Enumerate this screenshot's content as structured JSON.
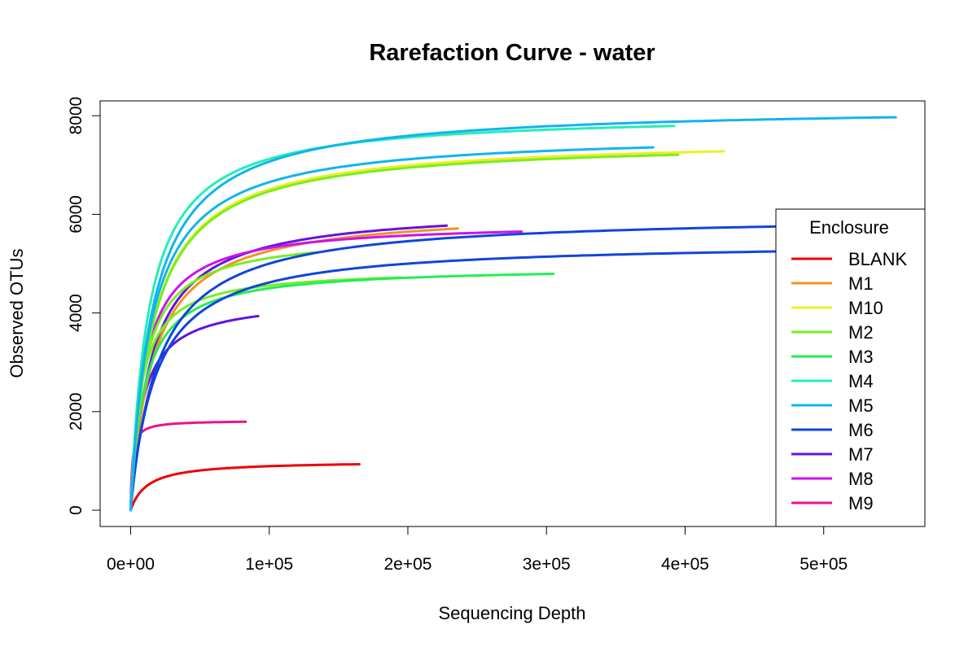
{
  "chart_data": {
    "type": "line",
    "title": "Rarefaction Curve - water",
    "xlabel": "Sequencing Depth",
    "ylabel": "Observed OTUs",
    "xlim": [
      -22000,
      573000
    ],
    "ylim": [
      -330,
      8300
    ],
    "x_ticks": [
      0,
      100000,
      200000,
      300000,
      400000,
      500000
    ],
    "x_tick_labels": [
      "0e+00",
      "1e+05",
      "2e+05",
      "3e+05",
      "4e+05",
      "5e+05"
    ],
    "y_ticks": [
      0,
      2000,
      4000,
      6000,
      8000
    ],
    "y_tick_labels": [
      "0",
      "2000",
      "4000",
      "6000",
      "8000"
    ],
    "grid": false,
    "legend": {
      "title": "Enclosure",
      "placement": "right",
      "entries": [
        {
          "name": "BLANK",
          "color": "#ee0000"
        },
        {
          "name": "M1",
          "color": "#f39222"
        },
        {
          "name": "M10",
          "color": "#eeee22"
        },
        {
          "name": "M2",
          "color": "#77ee22"
        },
        {
          "name": "M3",
          "color": "#22ee55"
        },
        {
          "name": "M4",
          "color": "#22eebb"
        },
        {
          "name": "M5",
          "color": "#11b4ee"
        },
        {
          "name": "M6",
          "color": "#1144dd"
        },
        {
          "name": "M7",
          "color": "#6611dd"
        },
        {
          "name": "M8",
          "color": "#cc11ee"
        },
        {
          "name": "M9",
          "color": "#ee1188"
        }
      ]
    },
    "series": [
      {
        "name": "BLANK",
        "color": "#ee0000",
        "max_depth": 165000,
        "plateau": 1000,
        "half_sat": 12000
      },
      {
        "name": "M9",
        "color": "#ee1188",
        "max_depth": 83000,
        "plateau": 1820,
        "half_sat": 1200
      },
      {
        "name": "M7",
        "color": "#6611dd",
        "max_depth": 92000,
        "plateau": 4300,
        "half_sat": 8500
      },
      {
        "name": "M7",
        "color": "#6611dd",
        "max_depth": 228000,
        "plateau": 6150,
        "half_sat": 15000
      },
      {
        "name": "M1",
        "color": "#f39222",
        "max_depth": 236000,
        "plateau": 6100,
        "half_sat": 16000
      },
      {
        "name": "M8",
        "color": "#cc11ee",
        "max_depth": 282000,
        "plateau": 5850,
        "half_sat": 10000
      },
      {
        "name": "M2",
        "color": "#77ee22",
        "max_depth": 195000,
        "plateau": 4900,
        "half_sat": 7500
      },
      {
        "name": "M2",
        "color": "#77ee22",
        "max_depth": 135000,
        "plateau": 5600,
        "half_sat": 9500
      },
      {
        "name": "M3",
        "color": "#22ee55",
        "max_depth": 305000,
        "plateau": 4950,
        "half_sat": 10000
      },
      {
        "name": "M6",
        "color": "#1144dd",
        "max_depth": 573000,
        "plateau": 6000,
        "half_sat": 20000
      },
      {
        "name": "M6",
        "color": "#1144dd",
        "max_depth": 573000,
        "plateau": 5450,
        "half_sat": 18000
      },
      {
        "name": "M10",
        "color": "#eeee22",
        "max_depth": 428000,
        "plateau": 7550,
        "half_sat": 16000
      },
      {
        "name": "M2",
        "color": "#77ee22",
        "max_depth": 395000,
        "plateau": 7500,
        "half_sat": 16000
      },
      {
        "name": "M5",
        "color": "#11b4ee",
        "max_depth": 377000,
        "plateau": 7650,
        "half_sat": 15000
      },
      {
        "name": "M4",
        "color": "#22eebb",
        "max_depth": 392000,
        "plateau": 8050,
        "half_sat": 13000
      },
      {
        "name": "M5",
        "color": "#11b4ee",
        "max_depth": 552000,
        "plateau": 8200,
        "half_sat": 16000
      }
    ]
  }
}
